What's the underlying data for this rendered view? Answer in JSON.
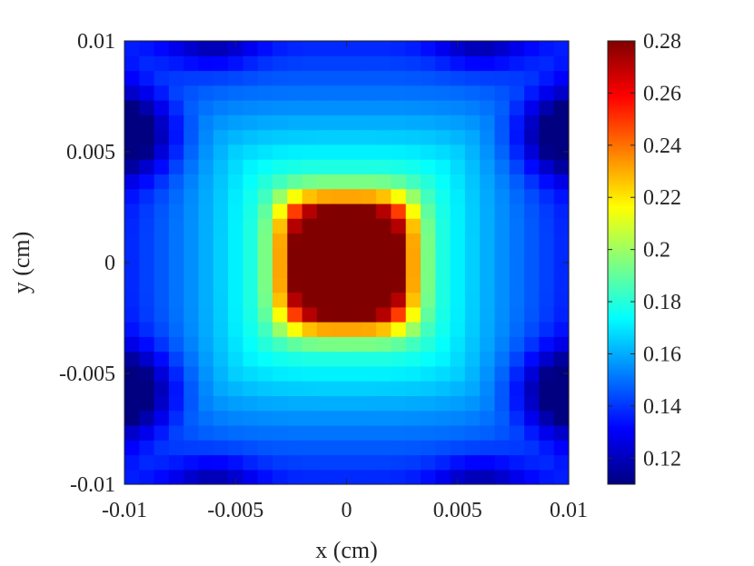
{
  "chart_data": {
    "type": "heatmap",
    "xlabel": "x (cm)",
    "ylabel": "y (cm)",
    "xlim": [
      -0.01,
      0.01
    ],
    "ylim": [
      -0.01,
      0.01
    ],
    "x_ticks": [
      {
        "value": -0.01,
        "label": "-0.01"
      },
      {
        "value": -0.005,
        "label": "-0.005"
      },
      {
        "value": 0,
        "label": "0"
      },
      {
        "value": 0.005,
        "label": "0.005"
      },
      {
        "value": 0.01,
        "label": "0.01"
      }
    ],
    "y_ticks": [
      {
        "value": -0.01,
        "label": "-0.01"
      },
      {
        "value": -0.005,
        "label": "-0.005"
      },
      {
        "value": 0,
        "label": "0"
      },
      {
        "value": 0.005,
        "label": "0.005"
      },
      {
        "value": 0.01,
        "label": "0.01"
      }
    ],
    "grid_size": [
      30,
      30
    ],
    "colormap": "jet",
    "colorbar": {
      "range": [
        0.11,
        0.28
      ],
      "ticks": [
        {
          "value": 0.12,
          "label": "0.12"
        },
        {
          "value": 0.14,
          "label": "0.14"
        },
        {
          "value": 0.16,
          "label": "0.16"
        },
        {
          "value": 0.18,
          "label": "0.18"
        },
        {
          "value": 0.2,
          "label": "0.2"
        },
        {
          "value": 0.22,
          "label": "0.22"
        },
        {
          "value": 0.24,
          "label": "0.24"
        },
        {
          "value": 0.26,
          "label": "0.26"
        },
        {
          "value": 0.28,
          "label": "0.28"
        }
      ]
    },
    "field": {
      "peak_value": 0.28,
      "peak_half_width_cm": 0.0025,
      "center_value_outer": 0.15,
      "corner_value": 0.14,
      "edge_min_value": 0.11,
      "edge_min_y_cm": [
        0.0058,
        -0.0058
      ]
    }
  }
}
